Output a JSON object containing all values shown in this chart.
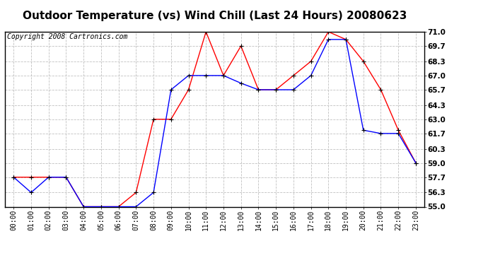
{
  "title": "Outdoor Temperature (vs) Wind Chill (Last 24 Hours) 20080623",
  "copyright": "Copyright 2008 Cartronics.com",
  "hours": [
    "00:00",
    "01:00",
    "02:00",
    "03:00",
    "04:00",
    "05:00",
    "06:00",
    "07:00",
    "08:00",
    "09:00",
    "10:00",
    "11:00",
    "12:00",
    "13:00",
    "14:00",
    "15:00",
    "16:00",
    "17:00",
    "18:00",
    "19:00",
    "20:00",
    "21:00",
    "22:00",
    "23:00"
  ],
  "temp": [
    57.7,
    57.7,
    57.7,
    57.7,
    55.0,
    55.0,
    55.0,
    56.3,
    63.0,
    63.0,
    65.7,
    71.0,
    67.0,
    69.7,
    65.7,
    65.7,
    67.0,
    68.3,
    71.0,
    70.3,
    68.3,
    65.7,
    62.0,
    59.0
  ],
  "wind_chill": [
    57.7,
    56.3,
    57.7,
    57.7,
    55.0,
    55.0,
    55.0,
    55.0,
    56.3,
    65.7,
    67.0,
    67.0,
    67.0,
    66.3,
    65.7,
    65.7,
    65.7,
    67.0,
    70.3,
    70.3,
    62.0,
    61.7,
    61.7,
    59.0
  ],
  "y_min": 55.0,
  "y_max": 71.0,
  "y_ticks": [
    55.0,
    56.3,
    57.7,
    59.0,
    60.3,
    61.7,
    63.0,
    64.3,
    65.7,
    67.0,
    68.3,
    69.7,
    71.0
  ],
  "temp_color": "#ff0000",
  "wind_chill_color": "#0000ff",
  "background_color": "#ffffff",
  "plot_bg_color": "#ffffff",
  "grid_color": "#c0c0c0",
  "title_fontsize": 11,
  "copyright_fontsize": 7
}
